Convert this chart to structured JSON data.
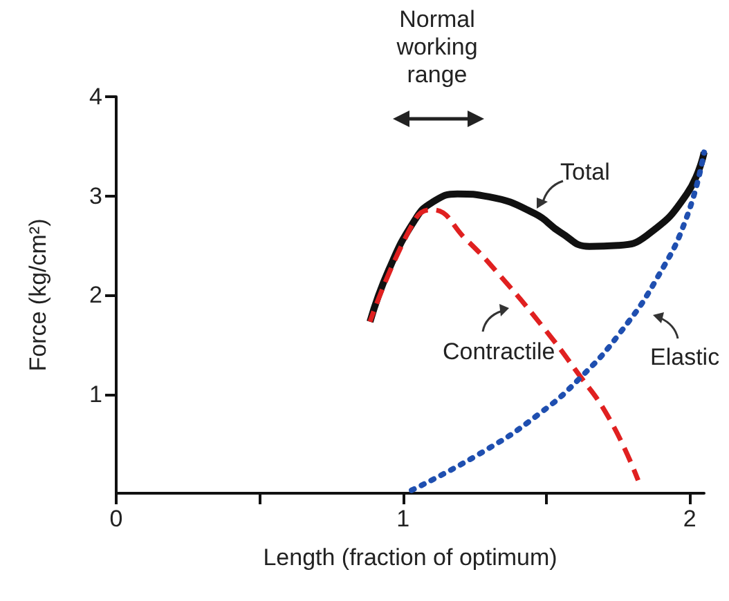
{
  "chart_data": {
    "type": "line",
    "xlabel": "Length (fraction of optimum)",
    "ylabel": "Force (kg/cm²)",
    "annotations": [
      "Normal working range"
    ],
    "xlim": [
      0,
      2.05
    ],
    "xticks": [
      0,
      {
        "value": 0.5,
        "label": null
      },
      1,
      {
        "value": 1.5,
        "label": null
      },
      2
    ],
    "ylim": [
      0,
      4
    ],
    "yticks": [
      1,
      2,
      3,
      4
    ],
    "grid": false,
    "legend": false,
    "marker": "none",
    "series": [
      {
        "name": "Total",
        "color": "#111111",
        "line_style": "solid",
        "x": [
          0.885,
          0.95,
          1.04,
          1.1,
          1.19,
          1.3,
          1.46,
          1.55,
          1.65,
          1.75,
          1.85,
          1.99,
          2.05
        ],
        "values": [
          1.73,
          2.25,
          2.75,
          2.93,
          3.02,
          2.99,
          2.82,
          2.63,
          2.49,
          2.5,
          2.6,
          3.02,
          3.44
        ]
      },
      {
        "name": "Contractile",
        "color": "#e02020",
        "line_style": "dashed",
        "x": [
          0.885,
          1.04,
          1.1,
          1.22,
          1.34,
          1.49,
          1.6,
          1.72,
          1.82
        ],
        "values": [
          1.73,
          2.75,
          2.86,
          2.56,
          2.19,
          1.67,
          1.25,
          0.75,
          0.13
        ]
      },
      {
        "name": "Elastic",
        "color": "#1f4fb0",
        "line_style": "dotted",
        "x": [
          1.03,
          1.28,
          1.47,
          1.62,
          1.76,
          1.89,
          1.99,
          2.05
        ],
        "values": [
          0.03,
          0.42,
          0.79,
          1.17,
          1.63,
          2.19,
          2.79,
          3.44
        ]
      }
    ]
  }
}
